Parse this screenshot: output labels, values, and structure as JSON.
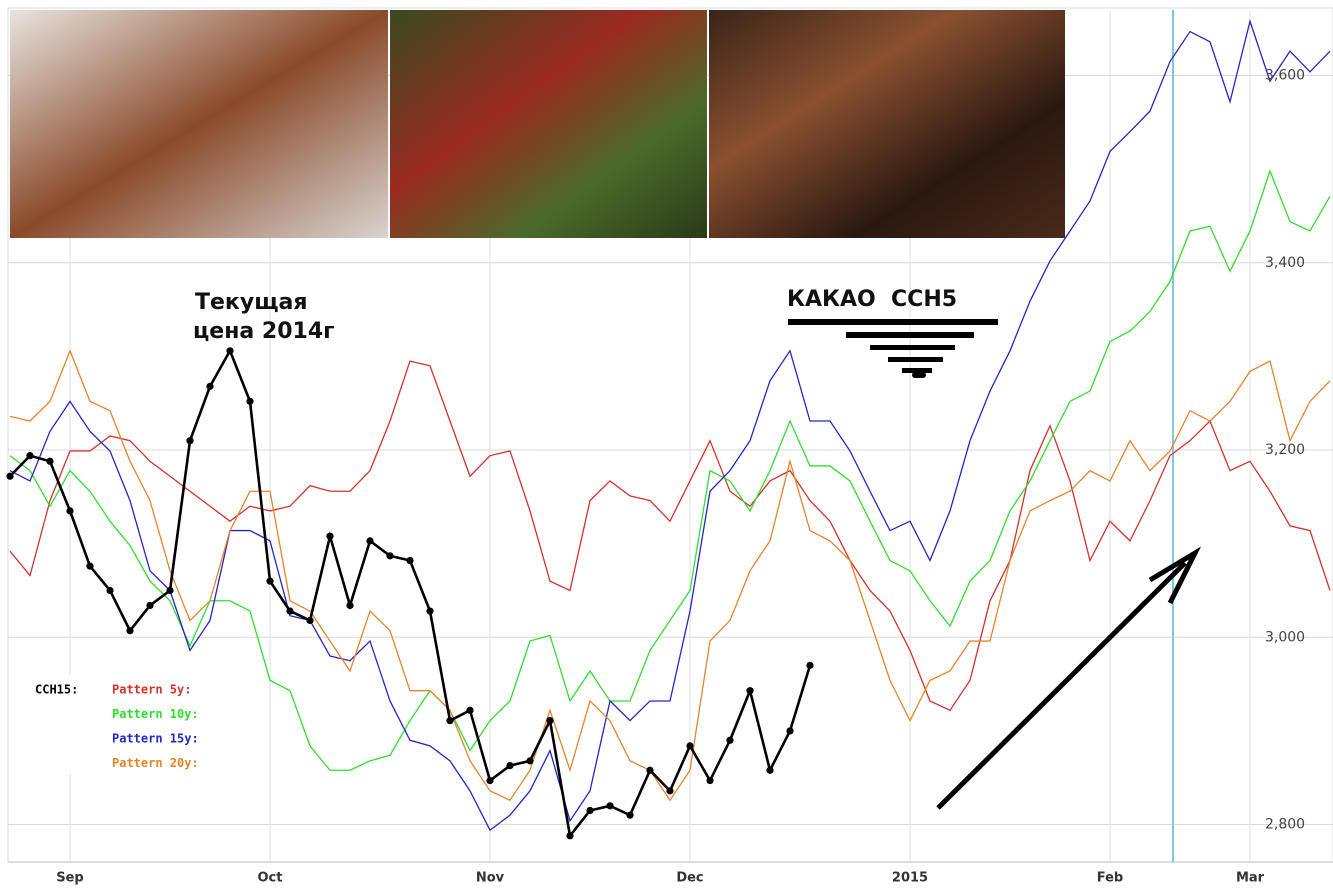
{
  "chart_data": {
    "type": "line",
    "annotations": [
      "Текущая",
      "цена 2014г",
      "КАКАО  CCH5"
    ],
    "categories": [
      null,
      null,
      null,
      "Sep",
      null,
      null,
      null,
      null,
      null,
      null,
      null,
      null,
      null,
      "Oct",
      null,
      null,
      null,
      null,
      null,
      null,
      null,
      null,
      null,
      null,
      "Nov",
      null,
      null,
      null,
      null,
      null,
      null,
      null,
      null,
      null,
      "Dec",
      null,
      null,
      null,
      null,
      null,
      null,
      null,
      null,
      null,
      null,
      "2015",
      null,
      null,
      null,
      null,
      null,
      null,
      null,
      null,
      null,
      "Feb",
      null,
      null,
      null,
      null,
      null,
      null,
      "Mar",
      null,
      null,
      null,
      null
    ],
    "series": [
      {
        "name": "CCH15:",
        "color": "#000000",
        "values": [
          3172,
          3194,
          3188,
          3135,
          3076,
          3050,
          3007,
          3034,
          3050,
          3210,
          3268,
          3306,
          3252,
          3060,
          3028,
          3018,
          3108,
          3034,
          3103,
          3087,
          3082,
          3028,
          2911,
          2922,
          2847,
          2863,
          2868,
          2911,
          2788,
          2815,
          2820,
          2810,
          2858,
          2836,
          2884,
          2847,
          2890,
          2943,
          2858,
          2900,
          2970,
          null,
          null,
          null,
          null,
          null,
          null,
          null,
          null,
          null,
          null,
          null,
          null,
          null,
          null,
          null,
          null,
          null,
          null,
          null,
          null,
          null,
          null,
          null,
          null,
          null,
          null
        ]
      },
      {
        "name": "Pattern 5y:",
        "color": "#d9302a",
        "values": [
          3092,
          3066,
          3146,
          3199,
          3199,
          3215,
          3210,
          3188,
          3172,
          3156,
          3140,
          3124,
          3140,
          3135,
          3140,
          3162,
          3156,
          3156,
          3178,
          3231,
          3295,
          3290,
          3231,
          3172,
          3194,
          3199,
          3135,
          3060,
          3050,
          3146,
          3167,
          3151,
          3146,
          3124,
          3167,
          3210,
          3156,
          3140,
          3167,
          3178,
          3146,
          3124,
          3082,
          3050,
          3028,
          2986,
          2932,
          2922,
          2954,
          3039,
          3082,
          3178,
          3226,
          3167,
          3082,
          3124,
          3103,
          3146,
          3194,
          3210,
          3231,
          3178,
          3188,
          3156,
          3119,
          3114,
          3050
        ]
      },
      {
        "name": "Pattern 10y:",
        "color": "#2ee02e",
        "values": [
          3194,
          3178,
          3140,
          3178,
          3156,
          3124,
          3098,
          3060,
          3039,
          2991,
          3039,
          3039,
          3028,
          2954,
          2943,
          2884,
          2858,
          2858,
          2868,
          2874,
          2911,
          2943,
          2922,
          2879,
          2911,
          2932,
          2996,
          3002,
          2932,
          2964,
          2932,
          2932,
          2986,
          3018,
          3050,
          3178,
          3167,
          3135,
          3178,
          3231,
          3183,
          3183,
          3167,
          3124,
          3082,
          3071,
          3039,
          3012,
          3060,
          3082,
          3135,
          3167,
          3210,
          3252,
          3263,
          3316,
          3327,
          3348,
          3380,
          3434,
          3439,
          3391,
          3434,
          3498,
          3444,
          3434,
          3471
        ]
      },
      {
        "name": "Pattern 15y:",
        "color": "#2626c8",
        "values": [
          3178,
          3167,
          3220,
          3252,
          3220,
          3199,
          3146,
          3071,
          3050,
          2986,
          3018,
          3114,
          3114,
          3103,
          3023,
          3018,
          2980,
          2975,
          2996,
          2932,
          2890,
          2884,
          2868,
          2836,
          2794,
          2810,
          2836,
          2879,
          2804,
          2836,
          2932,
          2911,
          2932,
          2932,
          3028,
          3156,
          3178,
          3210,
          3274,
          3306,
          3231,
          3231,
          3199,
          3156,
          3114,
          3124,
          3082,
          3135,
          3210,
          3263,
          3306,
          3359,
          3402,
          3434,
          3466,
          3519,
          3540,
          3562,
          3615,
          3647,
          3636,
          3572,
          3658,
          3594,
          3626,
          3604,
          3626
        ]
      },
      {
        "name": "Pattern 20y:",
        "color": "#e8832a",
        "values": [
          3236,
          3231,
          3252,
          3306,
          3252,
          3242,
          3188,
          3146,
          3071,
          3018,
          3039,
          3114,
          3156,
          3156,
          3039,
          3028,
          2996,
          2964,
          3028,
          3007,
          2943,
          2943,
          2922,
          2868,
          2836,
          2826,
          2858,
          2922,
          2858,
          2932,
          2911,
          2868,
          2858,
          2826,
          2858,
          2996,
          3018,
          3071,
          3103,
          3188,
          3114,
          3103,
          3082,
          3018,
          2954,
          2911,
          2954,
          2964,
          2996,
          2996,
          3082,
          3135,
          3146,
          3156,
          3178,
          3167,
          3210,
          3178,
          3199,
          3242,
          3231,
          3252,
          3284,
          3295,
          3210,
          3252,
          3274
        ]
      }
    ],
    "ylim": [
      2760,
      3670
    ],
    "yticks": [
      {
        "value": 2800,
        "label": "2,800"
      },
      {
        "value": 3000,
        "label": "3,000"
      },
      {
        "value": 3200,
        "label": "3,200"
      },
      {
        "value": 3400,
        "label": "3,400"
      },
      {
        "value": 3600,
        "label": "3,600"
      }
    ],
    "grid": true
  }
}
